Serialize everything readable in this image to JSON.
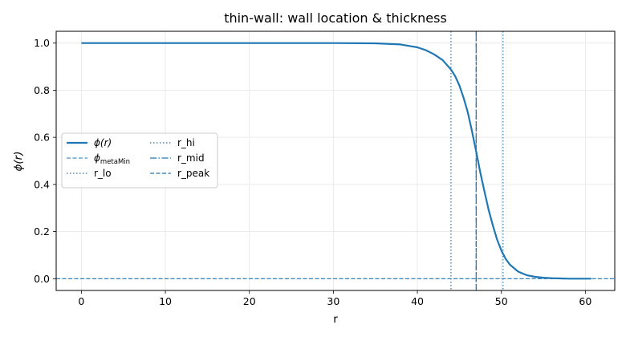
{
  "chart_data": {
    "type": "line",
    "title": "thin-wall: wall location & thickness",
    "xlabel": "r",
    "ylabel": "ϕ(r)",
    "xlim": [
      -3,
      63.5
    ],
    "ylim": [
      -0.05,
      1.05
    ],
    "xticks": [
      0,
      10,
      20,
      30,
      40,
      50,
      60
    ],
    "xtick_labels": [
      "0",
      "10",
      "20",
      "30",
      "40",
      "50",
      "60"
    ],
    "yticks": [
      0.0,
      0.2,
      0.4,
      0.6,
      0.8,
      1.0
    ],
    "ytick_labels": [
      "0.0",
      "0.2",
      "0.4",
      "0.6",
      "0.8",
      "1.0"
    ],
    "grid": true,
    "legend_position": "center-left",
    "series": [
      {
        "name": "ϕ(r)",
        "style": "solid",
        "color": "#1f77b4",
        "x": [
          0,
          5,
          10,
          15,
          20,
          25,
          30,
          35,
          38,
          40,
          41,
          42,
          43,
          44,
          44.5,
          45,
          45.5,
          46,
          46.5,
          47,
          47.5,
          48,
          48.5,
          49,
          49.5,
          50,
          50.5,
          51,
          52,
          53,
          54,
          55,
          56,
          57,
          58,
          59,
          60,
          60.7
        ],
        "y": [
          1.0,
          1.0,
          1.0,
          1.0,
          1.0,
          1.0,
          1.0,
          0.999,
          0.994,
          0.982,
          0.97,
          0.952,
          0.928,
          0.888,
          0.86,
          0.82,
          0.768,
          0.707,
          0.626,
          0.54,
          0.45,
          0.368,
          0.29,
          0.225,
          0.165,
          0.12,
          0.085,
          0.06,
          0.03,
          0.015,
          0.008,
          0.004,
          0.002,
          0.001,
          0.0,
          0.0,
          0.0,
          0.0
        ]
      }
    ],
    "hlines": [
      {
        "name": "ϕ",
        "name_sub": "metaMin",
        "y": 0.0,
        "style": "dashed",
        "color": "#1f77b4"
      }
    ],
    "vlines": [
      {
        "name": "r_lo",
        "x": 44.0,
        "style": "dotted",
        "color": "#1f77b4"
      },
      {
        "name": "r_hi",
        "x": 50.2,
        "style": "dotted",
        "color": "#1f77b4"
      },
      {
        "name": "r_mid",
        "x": 47.0,
        "style": "dashdot",
        "color": "#1f77b4"
      },
      {
        "name": "r_peak",
        "x": 47.0,
        "style": "dashed",
        "color": "#1f77b4"
      }
    ]
  }
}
